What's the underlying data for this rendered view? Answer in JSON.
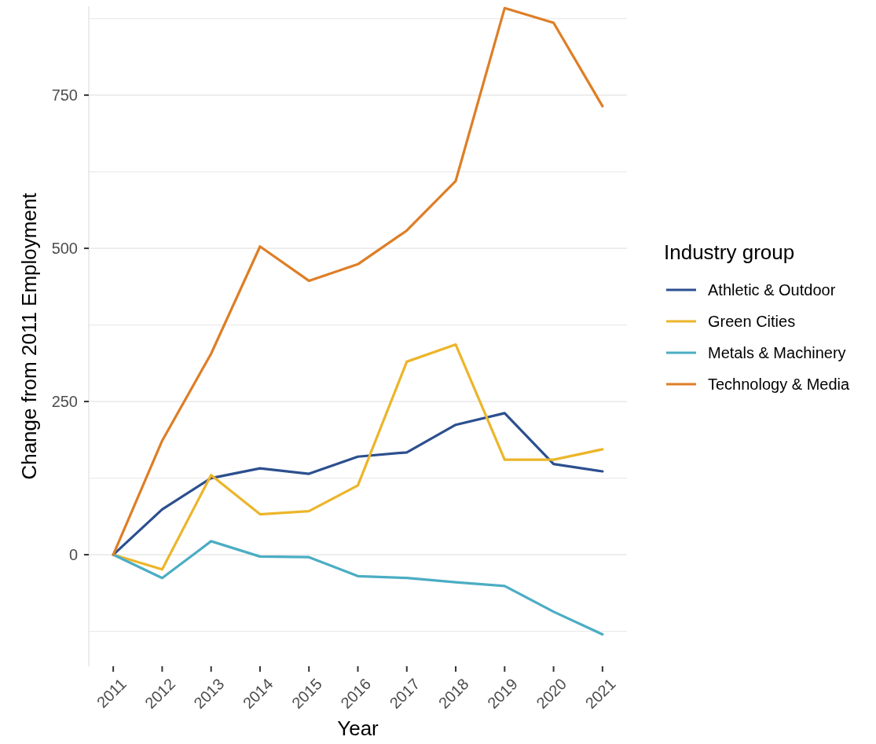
{
  "chart_data": {
    "type": "line",
    "xlabel": "Year",
    "ylabel": "Change from 2011 Employment",
    "legend_title": "Industry group",
    "x": [
      2011,
      2012,
      2013,
      2014,
      2015,
      2016,
      2017,
      2018,
      2019,
      2020,
      2021
    ],
    "series": [
      {
        "name": "Athletic & Outdoor",
        "color": "#2c4f8f",
        "values": [
          0,
          74,
          125,
          141,
          132,
          160,
          167,
          212,
          231,
          148,
          136
        ]
      },
      {
        "name": "Green Cities",
        "color": "#ecb52a",
        "values": [
          0,
          -24,
          130,
          66,
          71,
          113,
          315,
          343,
          155,
          155,
          172
        ]
      },
      {
        "name": "Metals & Machinery",
        "color": "#4badc4",
        "values": [
          0,
          -38,
          22,
          -3,
          -4,
          -35,
          -38,
          -45,
          -51,
          -93,
          -130
        ]
      },
      {
        "name": "Technology & Media",
        "color": "#de7e26",
        "values": [
          0,
          186,
          328,
          503,
          447,
          474,
          529,
          610,
          892,
          868,
          732
        ]
      }
    ],
    "xlim": [
      2010.5,
      2021.5
    ],
    "xticks": [
      2011,
      2012,
      2013,
      2014,
      2015,
      2016,
      2017,
      2018,
      2019,
      2020,
      2021
    ],
    "ylim": [
      -182,
      895
    ],
    "yticks": [
      {
        "value": -125,
        "label": null
      },
      0,
      {
        "value": 125,
        "label": null
      },
      250,
      {
        "value": 375,
        "label": null
      },
      500,
      {
        "value": 625,
        "label": null
      },
      750,
      {
        "value": 875,
        "label": null
      }
    ],
    "grid": "y",
    "legend": "right",
    "line_style": "solid"
  }
}
